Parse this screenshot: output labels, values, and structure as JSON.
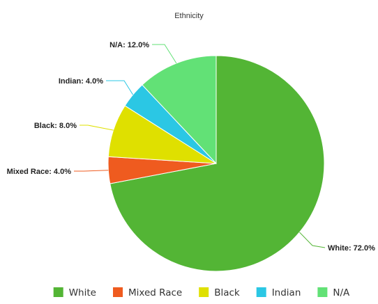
{
  "chart_data": {
    "type": "pie",
    "title": "Ethnicity",
    "slices": [
      {
        "label": "White",
        "value": 72.0,
        "display": "White: 72.0%",
        "color": "#53b535"
      },
      {
        "label": "Mixed Race",
        "value": 4.0,
        "display": "Mixed Race: 4.0%",
        "color": "#ef5b1f"
      },
      {
        "label": "Black",
        "value": 8.0,
        "display": "Black: 8.0%",
        "color": "#dfe000"
      },
      {
        "label": "Indian",
        "value": 4.0,
        "display": "Indian: 4.0%",
        "color": "#2bc7e4"
      },
      {
        "label": "N/A",
        "value": 12.0,
        "display": "N/A: 12.0%",
        "color": "#62e176"
      }
    ],
    "legend_position": "bottom",
    "start_angle_deg": 0,
    "direction": "clockwise"
  }
}
